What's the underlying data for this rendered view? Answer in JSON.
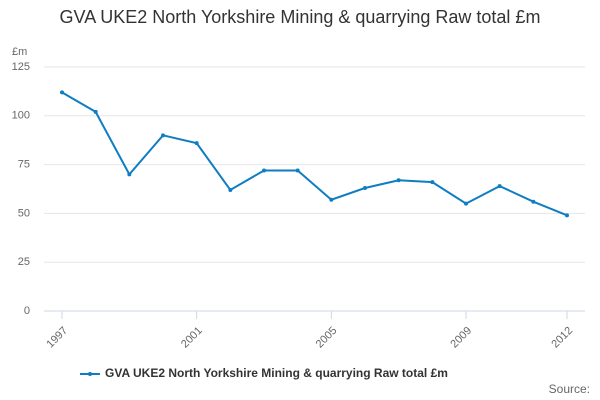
{
  "chart_data": {
    "type": "line",
    "title": "GVA UKE2 North Yorkshire Mining & quarrying Raw total £m",
    "y_label": "£m",
    "source": "Source:",
    "x": [
      1997,
      1998,
      1999,
      2000,
      2001,
      2002,
      2003,
      2004,
      2005,
      2006,
      2007,
      2008,
      2009,
      2010,
      2011,
      2012
    ],
    "series": [
      {
        "name": "GVA UKE2 North Yorkshire Mining & quarrying Raw total £m",
        "color": "#0f7dc2",
        "values": [
          112,
          102,
          70,
          90,
          86,
          62,
          72,
          72,
          57,
          63,
          67,
          66,
          55,
          64,
          56,
          49
        ]
      }
    ],
    "xlim": [
      1997,
      2012
    ],
    "xticks": [
      1997,
      2001,
      2005,
      2009,
      2012
    ],
    "ylim": [
      0,
      125
    ],
    "yticks": [
      0,
      25,
      50,
      75,
      100,
      125
    ],
    "grid": true
  }
}
